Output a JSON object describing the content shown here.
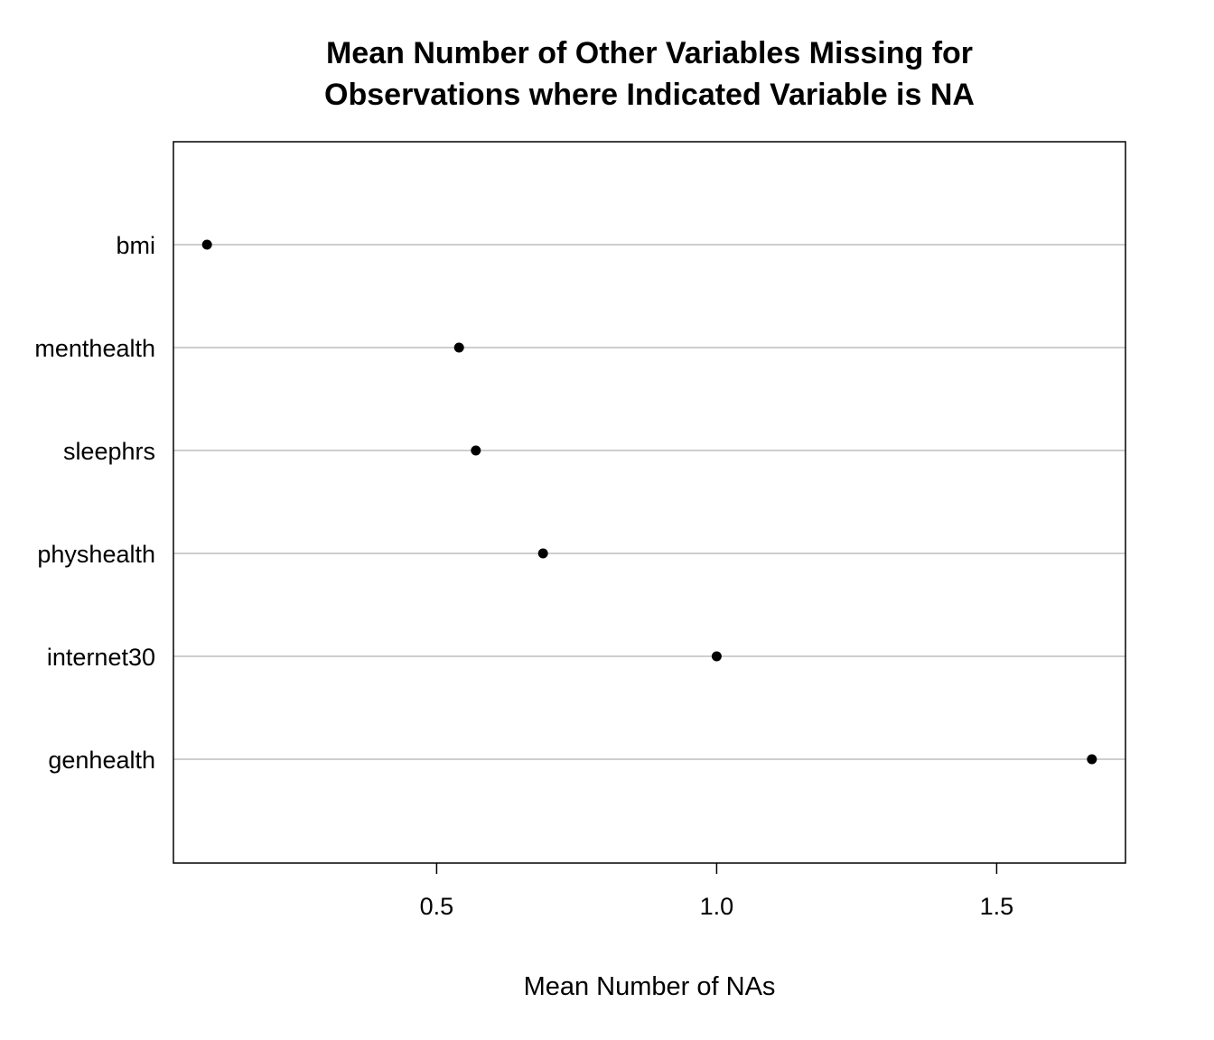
{
  "chart_data": {
    "type": "scatter",
    "subtype": "dot-plot",
    "title_lines": [
      "Mean Number of Other Variables Missing for",
      "Observations where Indicated Variable is NA"
    ],
    "xlabel": "Mean Number of NAs",
    "ylabel": "",
    "xlim": [
      0.03,
      1.73
    ],
    "x_ticks": [
      0.5,
      1.0,
      1.5
    ],
    "x_tick_labels": [
      "0.5",
      "1.0",
      "1.5"
    ],
    "categories": [
      "bmi",
      "menthealth",
      "sleephrs",
      "physhealth",
      "internet30",
      "genhealth"
    ],
    "values": [
      0.09,
      0.54,
      0.57,
      0.69,
      1.0,
      1.67
    ],
    "grid": "horizontal",
    "legend": "none",
    "point_color": "#000000",
    "grid_color": "#bebebe"
  }
}
